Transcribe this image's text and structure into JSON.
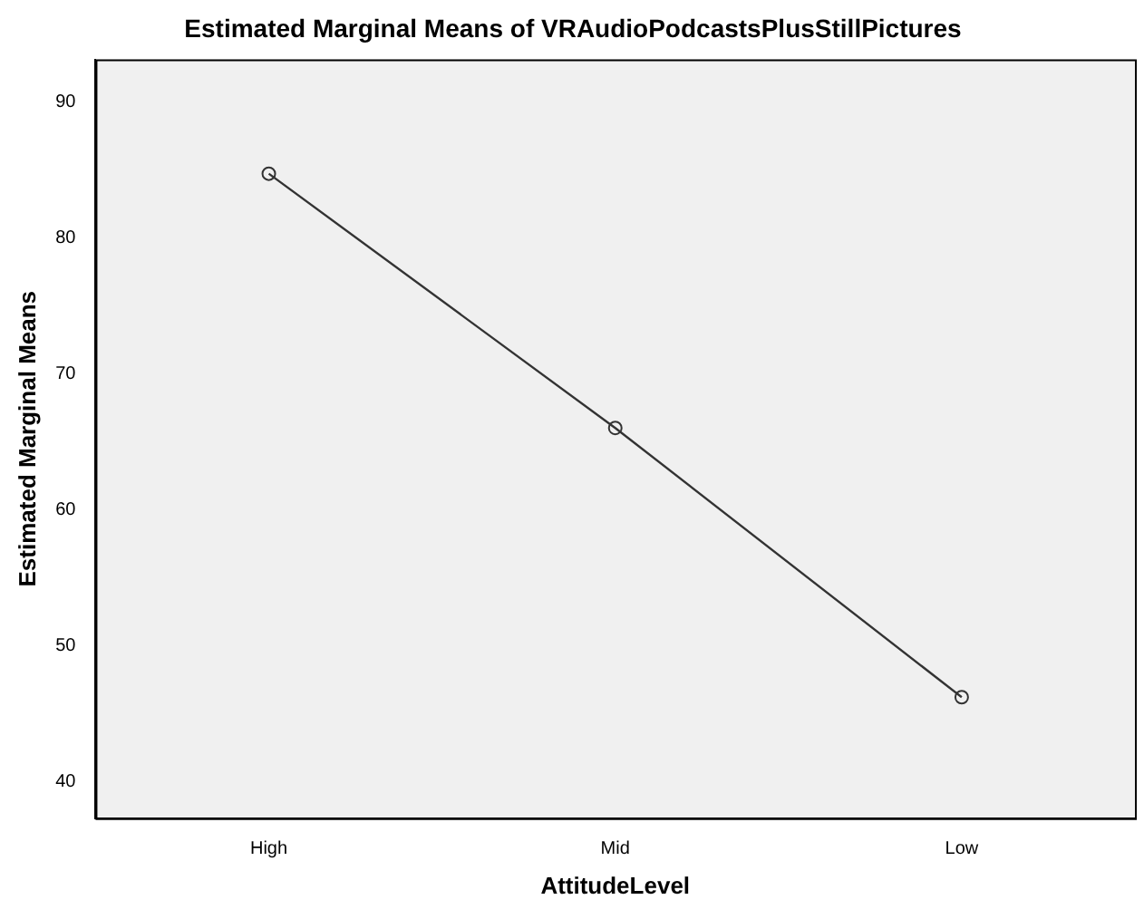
{
  "chart_data": {
    "type": "line",
    "title": "Estimated Marginal Means of VRAudioPodcastsPlusStillPictures",
    "xlabel": "AttitudeLevel",
    "ylabel": "Estimated Marginal Means",
    "categories": [
      "High",
      "Mid",
      "Low"
    ],
    "series": [
      {
        "color": "#333333",
        "values": [
          84.7,
          66.0,
          46.2
        ]
      }
    ],
    "ylim": [
      37.3,
      93.1
    ],
    "yticks": [
      40,
      50,
      60,
      70,
      80,
      90
    ],
    "grid": false,
    "legend": false,
    "marker": "circle",
    "line_style": "solid"
  }
}
